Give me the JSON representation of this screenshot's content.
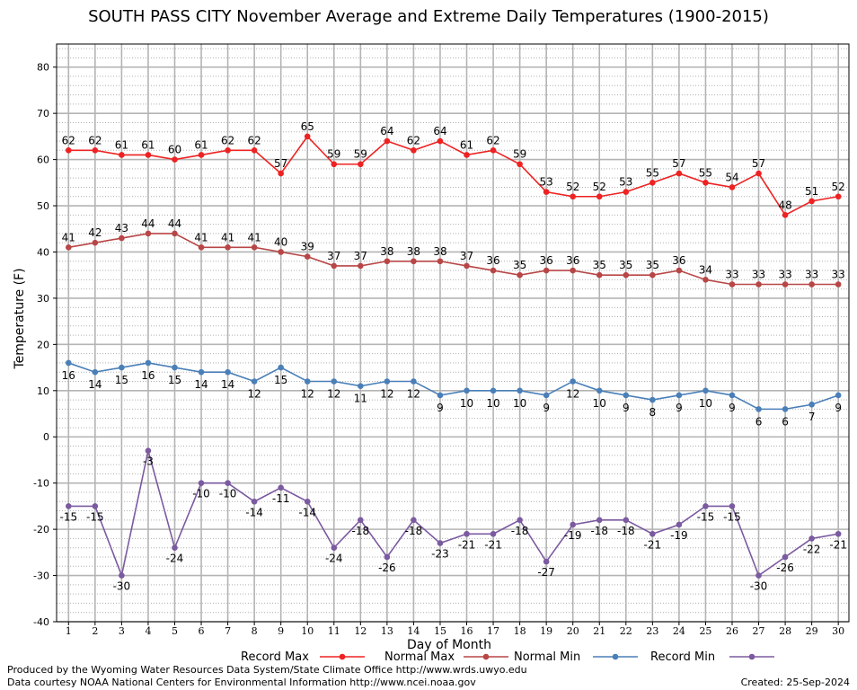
{
  "chart_data": {
    "type": "line",
    "title": "SOUTH PASS CITY November Average and Extreme Daily Temperatures (1900-2015)",
    "xlabel": "Day of Month",
    "ylabel": "Temperature (F)",
    "x": [
      1,
      2,
      3,
      4,
      5,
      6,
      7,
      8,
      9,
      10,
      11,
      12,
      13,
      14,
      15,
      16,
      17,
      18,
      19,
      20,
      21,
      22,
      23,
      24,
      25,
      26,
      27,
      28,
      29,
      30
    ],
    "xlim": [
      0.55,
      30.4
    ],
    "ylim": [
      -40,
      85
    ],
    "yticks": [
      -40,
      -30,
      -20,
      -10,
      0,
      10,
      20,
      30,
      40,
      50,
      60,
      70,
      80
    ],
    "grid": true,
    "legend_position": "bottom",
    "series": [
      {
        "name": "Record Max",
        "color": "#ee2222",
        "values": [
          62,
          62,
          61,
          61,
          60,
          61,
          62,
          62,
          57,
          65,
          59,
          59,
          64,
          62,
          64,
          61,
          62,
          59,
          53,
          52,
          52,
          53,
          55,
          57,
          55,
          54,
          57,
          48,
          51,
          52
        ]
      },
      {
        "name": "Normal Max",
        "color": "#b84646",
        "values": [
          41,
          42,
          43,
          44,
          44,
          41,
          41,
          41,
          40,
          39,
          37,
          37,
          38,
          38,
          38,
          37,
          36,
          35,
          36,
          36,
          35,
          35,
          35,
          36,
          34,
          33,
          33,
          33,
          33,
          33
        ]
      },
      {
        "name": "Normal Min",
        "color": "#4a7fb8",
        "values": [
          16,
          14,
          15,
          16,
          15,
          14,
          14,
          12,
          15,
          12,
          12,
          11,
          12,
          12,
          9,
          10,
          10,
          10,
          9,
          12,
          10,
          9,
          8,
          9,
          10,
          9,
          6,
          6,
          7,
          9
        ]
      },
      {
        "name": "Record Min",
        "color": "#7b5aa0",
        "values": [
          -15,
          -15,
          -30,
          -3,
          -24,
          -10,
          -10,
          -14,
          -11,
          -14,
          -24,
          -18,
          -26,
          -18,
          -23,
          -21,
          -21,
          -18,
          -27,
          -19,
          -18,
          -18,
          -21,
          -19,
          -15,
          -15,
          -30,
          -26,
          -22,
          -21
        ]
      }
    ]
  },
  "footer": {
    "line1": "Produced by the Wyoming Water Resources Data System/State Climate Office http://www.wrds.uwyo.edu",
    "line2": "Data courtesy NOAA National Centers for Environmental Information http://www.ncei.noaa.gov",
    "created": "Created: 25-Sep-2024"
  }
}
